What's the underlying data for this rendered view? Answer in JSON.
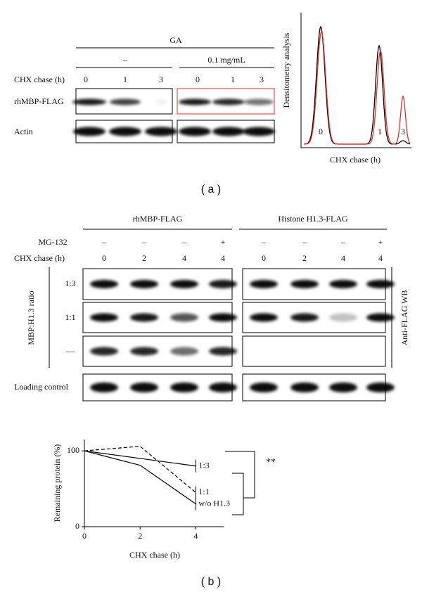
{
  "panel_a": {
    "treatment": "GA",
    "doses": [
      "–",
      "0.1 mg/mL"
    ],
    "chx_label": "CHX chase (h)",
    "chx_times": [
      "0",
      "1",
      "3",
      "0",
      "1",
      "3"
    ],
    "rows": [
      "rhMBP-FLAG",
      "Actin"
    ],
    "densitometry": {
      "y_label": "Densitometry analysis",
      "x_label": "CHX chase (h)",
      "peaks": [
        "0",
        "1",
        "3"
      ]
    },
    "caption": "( a )"
  },
  "panel_b": {
    "groups": [
      "rhMBP-FLAG",
      "Histone H1.3-FLAG"
    ],
    "mg132_label": "MG-132",
    "mg132": [
      "–",
      "–",
      "–",
      "+",
      "–",
      "–",
      "–",
      "+"
    ],
    "chx_label": "CHX chase (h)",
    "chx_times": [
      "0",
      "2",
      "4",
      "4",
      "0",
      "2",
      "4",
      "4"
    ],
    "ratio_label": "MBP:H1.3 ratio",
    "ratios": [
      "1:3",
      "1:1",
      "—"
    ],
    "side_label": "Anti-FLAG WB",
    "loading_label": "Loading control",
    "significance": "**",
    "caption": "( b )"
  },
  "chart_data": [
    {
      "type": "line",
      "y_label": "Remaining protein (%)",
      "x_label": "CHX chase (h)",
      "x": [
        0,
        2,
        4
      ],
      "xlim": [
        0,
        5
      ],
      "xticks": [
        0,
        2,
        4
      ],
      "ylim": [
        0,
        115
      ],
      "yticks": [
        0,
        100
      ],
      "series": [
        {
          "name": "1:3",
          "color": "#000000",
          "line_style": "solid",
          "values": [
            100,
            90,
            80
          ]
        },
        {
          "name": "1:1",
          "color": "#000000",
          "line_style": "dashed",
          "values": [
            100,
            106,
            45
          ]
        },
        {
          "name": "w/o H1.3",
          "color": "#000000",
          "line_style": "solid",
          "values": [
            100,
            81,
            30
          ]
        }
      ]
    }
  ]
}
